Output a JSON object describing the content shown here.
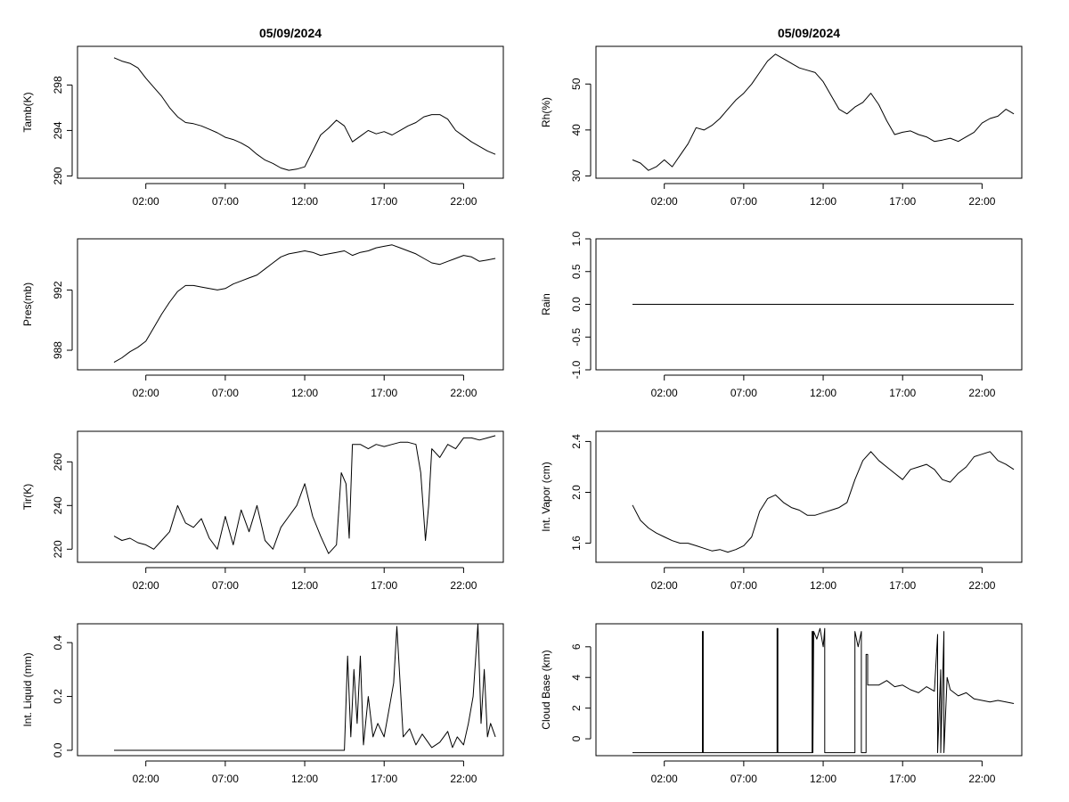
{
  "chart_data": [
    {
      "id": "tamb",
      "type": "line",
      "title": "05/09/2024",
      "ylabel": "Tamb(K)",
      "ylim": [
        289.8,
        301.4
      ],
      "yticks": [
        290,
        294,
        298
      ],
      "ytick_labels": [
        "290",
        "294",
        "298"
      ],
      "xlim": [
        -2.3,
        24.5
      ],
      "xticks": [
        2,
        7,
        12,
        17,
        22
      ],
      "xtick_labels": [
        "02:00",
        "07:00",
        "12:00",
        "17:00",
        "22:00"
      ],
      "series": [
        {
          "name": "Tamb",
          "x": [
            0,
            0.5,
            1,
            1.5,
            2,
            2.5,
            3,
            3.5,
            4,
            4.5,
            5,
            5.5,
            6,
            6.5,
            7,
            7.5,
            8,
            8.5,
            9,
            9.5,
            10,
            10.5,
            11,
            11.5,
            12,
            12.5,
            13,
            13.5,
            14,
            14.5,
            15,
            15.5,
            16,
            16.5,
            17,
            17.5,
            18,
            18.5,
            19,
            19.5,
            20,
            20.5,
            21,
            21.5,
            22,
            22.5,
            23,
            23.5,
            24
          ],
          "values": [
            300.4,
            300.1,
            299.9,
            299.5,
            298.6,
            297.8,
            297.0,
            296.0,
            295.2,
            294.7,
            294.6,
            294.4,
            294.1,
            293.8,
            293.4,
            293.2,
            292.9,
            292.5,
            291.9,
            291.4,
            291.1,
            290.7,
            290.5,
            290.6,
            290.8,
            292.2,
            293.6,
            294.2,
            294.9,
            294.4,
            293.0,
            293.5,
            294.0,
            293.7,
            293.9,
            293.6,
            294.0,
            294.4,
            294.7,
            295.2,
            295.4,
            295.4,
            295.0,
            294.0,
            293.5,
            293.0,
            292.6,
            292.2,
            291.9
          ]
        }
      ]
    },
    {
      "id": "rh",
      "type": "line",
      "title": "05/09/2024",
      "ylabel": "Rh(%)",
      "ylim": [
        29.5,
        58.2
      ],
      "yticks": [
        30,
        40,
        50
      ],
      "ytick_labels": [
        "30",
        "40",
        "50"
      ],
      "xlim": [
        -2.3,
        24.5
      ],
      "xticks": [
        2,
        7,
        12,
        17,
        22
      ],
      "xtick_labels": [
        "02:00",
        "07:00",
        "12:00",
        "17:00",
        "22:00"
      ],
      "series": [
        {
          "name": "Rh",
          "x": [
            0,
            0.5,
            1,
            1.5,
            2,
            2.5,
            3,
            3.5,
            4,
            4.5,
            5,
            5.5,
            6,
            6.5,
            7,
            7.5,
            8,
            8.5,
            9,
            9.5,
            10,
            10.5,
            11,
            11.5,
            12,
            12.5,
            13,
            13.5,
            14,
            14.5,
            15,
            15.5,
            16,
            16.5,
            17,
            17.5,
            18,
            18.5,
            19,
            19.5,
            20,
            20.5,
            21,
            21.5,
            22,
            22.5,
            23,
            23.5,
            24
          ],
          "values": [
            33.5,
            32.8,
            31.2,
            32.0,
            33.5,
            32.0,
            34.5,
            37.0,
            40.5,
            40.0,
            41.0,
            42.5,
            44.5,
            46.5,
            48.0,
            50.0,
            52.5,
            55.0,
            56.5,
            55.5,
            54.5,
            53.5,
            53.0,
            52.5,
            50.5,
            47.5,
            44.5,
            43.5,
            45.0,
            46.0,
            48.0,
            45.5,
            42.0,
            39.0,
            39.5,
            39.8,
            39.0,
            38.5,
            37.5,
            37.8,
            38.2,
            37.5,
            38.5,
            39.5,
            41.5,
            42.5,
            43.0,
            44.5,
            43.5
          ]
        }
      ]
    },
    {
      "id": "pres",
      "type": "line",
      "title": "",
      "ylabel": "Pres(mb)",
      "ylim": [
        986.7,
        995.4
      ],
      "yticks": [
        988,
        992
      ],
      "ytick_labels": [
        "988",
        "992"
      ],
      "xlim": [
        -2.3,
        24.5
      ],
      "xticks": [
        2,
        7,
        12,
        17,
        22
      ],
      "xtick_labels": [
        "02:00",
        "07:00",
        "12:00",
        "17:00",
        "22:00"
      ],
      "series": [
        {
          "name": "Pres",
          "x": [
            0,
            0.5,
            1,
            1.5,
            2,
            2.5,
            3,
            3.5,
            4,
            4.5,
            5,
            5.5,
            6,
            6.5,
            7,
            7.5,
            8,
            8.5,
            9,
            9.5,
            10,
            10.5,
            11,
            11.5,
            12,
            12.5,
            13,
            13.5,
            14,
            14.5,
            15,
            15.5,
            16,
            16.5,
            17,
            17.5,
            18,
            18.5,
            19,
            19.5,
            20,
            20.5,
            21,
            21.5,
            22,
            22.5,
            23,
            23.5,
            24
          ],
          "values": [
            987.2,
            987.5,
            987.9,
            988.2,
            988.6,
            989.5,
            990.4,
            991.2,
            991.9,
            992.3,
            992.3,
            992.2,
            992.1,
            992.0,
            992.1,
            992.4,
            992.6,
            992.8,
            993.0,
            993.4,
            993.8,
            994.2,
            994.4,
            994.5,
            994.6,
            994.5,
            994.3,
            994.4,
            994.5,
            994.6,
            994.3,
            994.5,
            994.6,
            994.8,
            994.9,
            995.0,
            994.8,
            994.6,
            994.4,
            994.1,
            993.8,
            993.7,
            993.9,
            994.1,
            994.3,
            994.2,
            993.9,
            994.0,
            994.1
          ]
        }
      ]
    },
    {
      "id": "rain",
      "type": "line",
      "title": "",
      "ylabel": "Rain",
      "ylim": [
        -1.0,
        1.0
      ],
      "yticks": [
        -1.0,
        -0.5,
        0.0,
        0.5,
        1.0
      ],
      "ytick_labels": [
        "-1.0",
        "-0.5",
        "0.0",
        "0.5",
        "1.0"
      ],
      "xlim": [
        -2.3,
        24.5
      ],
      "xticks": [
        2,
        7,
        12,
        17,
        22
      ],
      "xtick_labels": [
        "02:00",
        "07:00",
        "12:00",
        "17:00",
        "22:00"
      ],
      "series": [
        {
          "name": "Rain",
          "x": [
            0,
            24
          ],
          "values": [
            0,
            0
          ]
        }
      ]
    },
    {
      "id": "tir",
      "type": "line",
      "title": "",
      "ylabel": "Tir(K)",
      "ylim": [
        214,
        274
      ],
      "yticks": [
        220,
        240,
        260
      ],
      "ytick_labels": [
        "220",
        "240",
        "260"
      ],
      "xlim": [
        -2.3,
        24.5
      ],
      "xticks": [
        2,
        7,
        12,
        17,
        22
      ],
      "xtick_labels": [
        "02:00",
        "07:00",
        "12:00",
        "17:00",
        "22:00"
      ],
      "series": [
        {
          "name": "Tir",
          "x": [
            0,
            0.5,
            1,
            1.5,
            2,
            2.5,
            3,
            3.5,
            4,
            4.5,
            5,
            5.5,
            6,
            6.5,
            7,
            7.5,
            8,
            8.5,
            9,
            9.5,
            10,
            10.5,
            11,
            11.5,
            12,
            12.5,
            13,
            13.5,
            14,
            14.3,
            14.6,
            14.8,
            15,
            15.5,
            16,
            16.5,
            17,
            17.5,
            18,
            18.5,
            19,
            19.3,
            19.6,
            19.8,
            20,
            20.5,
            21,
            21.5,
            22,
            22.5,
            23,
            23.5,
            24
          ],
          "values": [
            226,
            224,
            225,
            223,
            222,
            220,
            224,
            228,
            240,
            232,
            230,
            234,
            225,
            220,
            235,
            222,
            238,
            228,
            240,
            224,
            220,
            230,
            235,
            240,
            250,
            235,
            226,
            218,
            222,
            255,
            250,
            225,
            268,
            268,
            266,
            268,
            267,
            268,
            269,
            269,
            268,
            255,
            224,
            240,
            266,
            262,
            268,
            266,
            271,
            271,
            270,
            271,
            272
          ]
        }
      ]
    },
    {
      "id": "vapor",
      "type": "line",
      "title": "",
      "ylabel": "Int. Vapor (cm)",
      "ylim": [
        1.45,
        2.48
      ],
      "yticks": [
        1.6,
        2.0,
        2.4
      ],
      "ytick_labels": [
        "1.6",
        "2.0",
        "2.4"
      ],
      "xlim": [
        -2.3,
        24.5
      ],
      "xticks": [
        2,
        7,
        12,
        17,
        22
      ],
      "xtick_labels": [
        "02:00",
        "07:00",
        "12:00",
        "17:00",
        "22:00"
      ],
      "series": [
        {
          "name": "Int. Vapor",
          "x": [
            0,
            0.5,
            1,
            1.5,
            2,
            2.5,
            3,
            3.5,
            4,
            4.5,
            5,
            5.5,
            6,
            6.5,
            7,
            7.5,
            8,
            8.5,
            9,
            9.5,
            10,
            10.5,
            11,
            11.5,
            12,
            12.5,
            13,
            13.5,
            14,
            14.5,
            15,
            15.5,
            16,
            16.5,
            17,
            17.5,
            18,
            18.5,
            19,
            19.5,
            20,
            20.5,
            21,
            21.5,
            22,
            22.5,
            23,
            23.5,
            24
          ],
          "values": [
            1.9,
            1.78,
            1.72,
            1.68,
            1.65,
            1.62,
            1.6,
            1.6,
            1.58,
            1.56,
            1.54,
            1.55,
            1.53,
            1.55,
            1.58,
            1.65,
            1.85,
            1.95,
            1.98,
            1.92,
            1.88,
            1.86,
            1.82,
            1.82,
            1.84,
            1.86,
            1.88,
            1.92,
            2.1,
            2.25,
            2.32,
            2.25,
            2.2,
            2.15,
            2.1,
            2.18,
            2.2,
            2.22,
            2.18,
            2.1,
            2.08,
            2.15,
            2.2,
            2.28,
            2.3,
            2.32,
            2.25,
            2.22,
            2.18
          ]
        }
      ]
    },
    {
      "id": "liquid",
      "type": "line",
      "title": "",
      "ylabel": "Int. Liquid (mm)",
      "ylim": [
        -0.02,
        0.47
      ],
      "yticks": [
        0.0,
        0.2,
        0.4
      ],
      "ytick_labels": [
        "0.0",
        "0.2",
        "0.4"
      ],
      "xlim": [
        -2.3,
        24.5
      ],
      "xticks": [
        2,
        7,
        12,
        17,
        22
      ],
      "xtick_labels": [
        "02:00",
        "07:00",
        "12:00",
        "17:00",
        "22:00"
      ],
      "series": [
        {
          "name": "Int. Liquid",
          "x": [
            0,
            14.5,
            14.7,
            14.9,
            15.1,
            15.3,
            15.5,
            15.7,
            16,
            16.3,
            16.6,
            17,
            17.3,
            17.6,
            17.8,
            18.2,
            18.6,
            19,
            19.4,
            20,
            20.5,
            21,
            21.3,
            21.6,
            22,
            22.3,
            22.6,
            22.9,
            23.1,
            23.3,
            23.5,
            23.7,
            24
          ],
          "values": [
            0,
            0,
            0.35,
            0.05,
            0.3,
            0.1,
            0.35,
            0.02,
            0.2,
            0.05,
            0.1,
            0.05,
            0.15,
            0.25,
            0.46,
            0.05,
            0.08,
            0.02,
            0.06,
            0.01,
            0.03,
            0.07,
            0.01,
            0.05,
            0.02,
            0.1,
            0.2,
            0.47,
            0.1,
            0.3,
            0.05,
            0.1,
            0.05
          ]
        }
      ]
    },
    {
      "id": "cloud",
      "type": "line",
      "title": "",
      "ylabel": "Cloud Base (km)",
      "ylim": [
        -1.1,
        7.5
      ],
      "yticks": [
        0,
        2,
        4,
        6
      ],
      "ytick_labels": [
        "0",
        "2",
        "4",
        "6"
      ],
      "xlim": [
        -2.3,
        24.5
      ],
      "xticks": [
        2,
        7,
        12,
        17,
        22
      ],
      "xtick_labels": [
        "02:00",
        "07:00",
        "12:00",
        "17:00",
        "22:00"
      ],
      "series": [
        {
          "name": "Cloud Base",
          "x": [
            0,
            4.4,
            4.4,
            4.45,
            4.45,
            9.1,
            9.1,
            9.15,
            9.15,
            11.3,
            11.3,
            11.35,
            11.35,
            11.4,
            11.6,
            11.8,
            12.0,
            12.1,
            12.1,
            14.0,
            14.0,
            14.2,
            14.4,
            14.4,
            14.7,
            14.7,
            14.8,
            14.8,
            15.5,
            16,
            16.5,
            17,
            17.5,
            18,
            18.5,
            19,
            19.2,
            19.2,
            19.4,
            19.4,
            19.6,
            19.6,
            19.8,
            20,
            20.5,
            21,
            21.5,
            22,
            22.5,
            23,
            23.5,
            24
          ],
          "values": [
            -0.9,
            -0.9,
            7.0,
            7.0,
            -0.9,
            -0.9,
            7.2,
            7.2,
            -0.9,
            -0.9,
            7.0,
            7.0,
            -0.9,
            7.0,
            6.5,
            7.2,
            6.0,
            7.2,
            -0.9,
            -0.9,
            7.0,
            6.0,
            7.0,
            -0.9,
            -0.9,
            5.5,
            5.5,
            3.5,
            3.5,
            3.8,
            3.4,
            3.5,
            3.2,
            3.0,
            3.4,
            3.1,
            6.8,
            -0.9,
            4.5,
            -0.9,
            7.0,
            -0.9,
            4.0,
            3.2,
            2.8,
            3.0,
            2.6,
            2.5,
            2.4,
            2.5,
            2.4,
            2.3
          ]
        }
      ]
    }
  ]
}
